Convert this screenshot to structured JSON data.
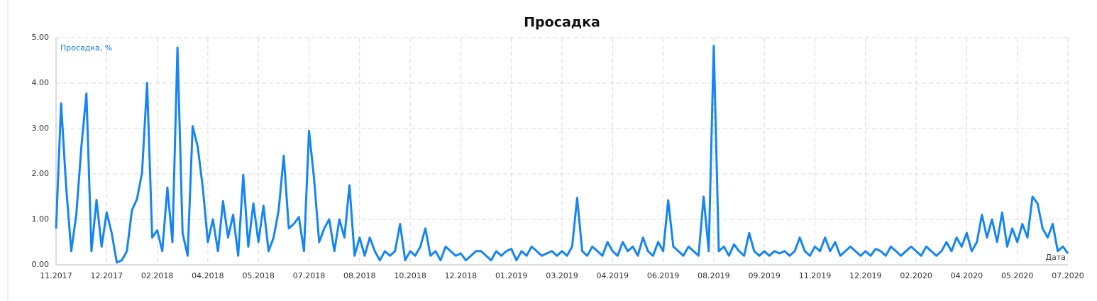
{
  "chart_data": {
    "type": "line",
    "title": "Просадка",
    "x_label": "Дата",
    "series": [
      {
        "name": "Просадка, %",
        "color": "#1485f5",
        "x": [
          0,
          0.1,
          0.2,
          0.3,
          0.4,
          0.5,
          0.6,
          0.7,
          0.8,
          0.9,
          1,
          1.1,
          1.2,
          1.3,
          1.4,
          1.5,
          1.6,
          1.7,
          1.8,
          1.9,
          2,
          2.1,
          2.2,
          2.3,
          2.4,
          2.5,
          2.6,
          2.7,
          2.8,
          2.9,
          3,
          3.1,
          3.2,
          3.3,
          3.4,
          3.5,
          3.6,
          3.7,
          3.8,
          3.9,
          4,
          4.1,
          4.2,
          4.3,
          4.4,
          4.5,
          4.6,
          4.7,
          4.8,
          4.9,
          5,
          5.1,
          5.2,
          5.3,
          5.4,
          5.5,
          5.6,
          5.7,
          5.8,
          5.9,
          6,
          6.1,
          6.2,
          6.3,
          6.4,
          6.5,
          6.6,
          6.7,
          6.8,
          6.9,
          7,
          7.1,
          7.2,
          7.3,
          7.4,
          7.5,
          7.6,
          7.7,
          7.8,
          7.9,
          8,
          8.1,
          8.2,
          8.3,
          8.4,
          8.5,
          8.6,
          8.7,
          8.8,
          8.9,
          9,
          9.1,
          9.2,
          9.3,
          9.4,
          9.5,
          9.6,
          9.7,
          9.8,
          9.9,
          10,
          10.1,
          10.2,
          10.3,
          10.4,
          10.5,
          10.6,
          10.7,
          10.8,
          10.9,
          11,
          11.1,
          11.2,
          11.3,
          11.4,
          11.5,
          11.6,
          11.7,
          11.8,
          11.9,
          12,
          12.1,
          12.2,
          12.3,
          12.4,
          12.5,
          12.6,
          12.7,
          12.8,
          12.9,
          13,
          13.1,
          13.2,
          13.3,
          13.4,
          13.5,
          13.6,
          13.7,
          13.8,
          13.9,
          14,
          14.1,
          14.2,
          14.3,
          14.4,
          14.5,
          14.6,
          14.7,
          14.8,
          14.9,
          15,
          15.1,
          15.2,
          15.3,
          15.4,
          15.5,
          15.6,
          15.7,
          15.8,
          15.9,
          16,
          16.1,
          16.2,
          16.3,
          16.4,
          16.5,
          16.6,
          16.7,
          16.8,
          16.9,
          17,
          17.1,
          17.2,
          17.3,
          17.4,
          17.5,
          17.6,
          17.7,
          17.8,
          17.9,
          18,
          18.1,
          18.2,
          18.3,
          18.4,
          18.5,
          18.6,
          18.7,
          18.8,
          18.9,
          19,
          19.1,
          19.2,
          19.3,
          19.4,
          19.5,
          19.6,
          19.7,
          19.8,
          19.9,
          20
        ],
        "values": [
          0.8,
          3.55,
          1.7,
          0.3,
          1.1,
          2.6,
          3.77,
          0.3,
          1.43,
          0.4,
          1.15,
          0.7,
          0.05,
          0.1,
          0.3,
          1.2,
          1.45,
          2.03,
          4.0,
          0.6,
          0.76,
          0.3,
          1.7,
          0.5,
          4.78,
          0.7,
          0.2,
          3.05,
          2.6,
          1.7,
          0.5,
          1.0,
          0.3,
          1.4,
          0.6,
          1.1,
          0.2,
          1.98,
          0.4,
          1.35,
          0.5,
          1.3,
          0.3,
          0.6,
          1.2,
          2.4,
          0.8,
          0.9,
          1.05,
          0.3,
          2.95,
          1.9,
          0.5,
          0.8,
          1.0,
          0.3,
          1.0,
          0.6,
          1.75,
          0.2,
          0.6,
          0.2,
          0.6,
          0.3,
          0.1,
          0.3,
          0.2,
          0.3,
          0.9,
          0.1,
          0.3,
          0.2,
          0.4,
          0.8,
          0.2,
          0.3,
          0.1,
          0.4,
          0.3,
          0.2,
          0.25,
          0.1,
          0.2,
          0.3,
          0.3,
          0.2,
          0.1,
          0.3,
          0.2,
          0.3,
          0.35,
          0.1,
          0.3,
          0.2,
          0.4,
          0.3,
          0.2,
          0.25,
          0.3,
          0.2,
          0.3,
          0.2,
          0.4,
          1.47,
          0.3,
          0.2,
          0.4,
          0.3,
          0.2,
          0.5,
          0.3,
          0.2,
          0.5,
          0.3,
          0.4,
          0.2,
          0.6,
          0.3,
          0.2,
          0.5,
          0.3,
          1.42,
          0.4,
          0.3,
          0.2,
          0.4,
          0.3,
          0.2,
          1.5,
          0.3,
          4.82,
          0.3,
          0.4,
          0.2,
          0.45,
          0.3,
          0.2,
          0.7,
          0.3,
          0.2,
          0.3,
          0.2,
          0.3,
          0.25,
          0.3,
          0.2,
          0.3,
          0.6,
          0.3,
          0.2,
          0.4,
          0.3,
          0.6,
          0.3,
          0.5,
          0.2,
          0.3,
          0.4,
          0.3,
          0.2,
          0.3,
          0.2,
          0.35,
          0.3,
          0.2,
          0.4,
          0.3,
          0.2,
          0.3,
          0.4,
          0.3,
          0.2,
          0.4,
          0.3,
          0.2,
          0.3,
          0.5,
          0.3,
          0.6,
          0.4,
          0.7,
          0.3,
          0.5,
          1.1,
          0.6,
          1.0,
          0.5,
          1.15,
          0.4,
          0.8,
          0.5,
          0.9,
          0.6,
          1.5,
          1.35,
          0.8,
          0.6,
          0.9,
          0.3,
          0.4,
          0.25
        ]
      }
    ],
    "xlim": [
      0,
      20
    ],
    "xticks": [
      {
        "value": 0,
        "label": "11.2017"
      },
      {
        "value": 1,
        "label": "12.2017"
      },
      {
        "value": 2,
        "label": "02.2018"
      },
      {
        "value": 3,
        "label": "04.2018"
      },
      {
        "value": 4,
        "label": "05.2018"
      },
      {
        "value": 5,
        "label": "07.2018"
      },
      {
        "value": 6,
        "label": "08.2018"
      },
      {
        "value": 7,
        "label": "10.2018"
      },
      {
        "value": 8,
        "label": "12.2018"
      },
      {
        "value": 9,
        "label": "01.2019"
      },
      {
        "value": 10,
        "label": "03.2019"
      },
      {
        "value": 11,
        "label": "04.2019"
      },
      {
        "value": 12,
        "label": "06.2019"
      },
      {
        "value": 13,
        "label": "08.2019"
      },
      {
        "value": 14,
        "label": "09.2019"
      },
      {
        "value": 15,
        "label": "11.2019"
      },
      {
        "value": 16,
        "label": "12.2019"
      },
      {
        "value": 17,
        "label": "02.2020"
      },
      {
        "value": 18,
        "label": "04.2020"
      },
      {
        "value": 19,
        "label": "05.2020"
      },
      {
        "value": 20,
        "label": "07.2020"
      }
    ],
    "ylim": [
      0,
      5
    ],
    "yticks": [
      {
        "value": 0,
        "label": "0.00"
      },
      {
        "value": 1,
        "label": "1.00"
      },
      {
        "value": 2,
        "label": "2.00"
      },
      {
        "value": 3,
        "label": "3.00"
      },
      {
        "value": 4,
        "label": "4.00"
      },
      {
        "value": 5,
        "label": "5.00"
      }
    ],
    "grid": true
  }
}
